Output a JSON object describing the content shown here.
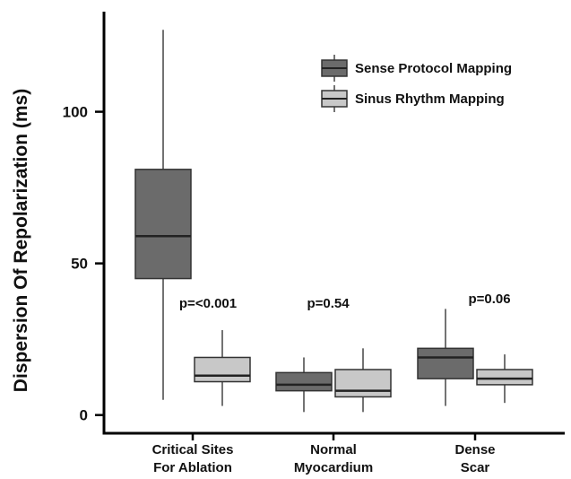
{
  "chart_data": {
    "type": "box",
    "ylabel": "Dispersion Of Repolarization (ms)",
    "xlabel": "",
    "ylim": [
      -6,
      133
    ],
    "yticks": [
      0,
      50,
      100
    ],
    "grid": false,
    "legend_position": "top-right",
    "categories": [
      {
        "line1": "Critical Sites",
        "line2": "For Ablation"
      },
      {
        "line1": "Normal",
        "line2": "Myocardium"
      },
      {
        "line1": "Dense",
        "line2": "Scar"
      }
    ],
    "p_values": [
      "p=<0.001",
      "p=0.54",
      "p=0.06"
    ],
    "series": [
      {
        "name": "Sense Protocol Mapping",
        "color": "#6b6b6b",
        "boxes": [
          {
            "min": 5,
            "q1": 45,
            "median": 59,
            "q3": 81,
            "max": 127
          },
          {
            "min": 1,
            "q1": 8,
            "median": 10,
            "q3": 14,
            "max": 19
          },
          {
            "min": 3,
            "q1": 12,
            "median": 19,
            "q3": 22,
            "max": 35
          }
        ]
      },
      {
        "name": "Sinus Rhythm Mapping",
        "color": "#c8c8c8",
        "boxes": [
          {
            "min": 3,
            "q1": 11,
            "median": 13,
            "q3": 19,
            "max": 28
          },
          {
            "min": 1,
            "q1": 6,
            "median": 8,
            "q3": 15,
            "max": 22
          },
          {
            "min": 4,
            "q1": 10,
            "median": 12,
            "q3": 15,
            "max": 20
          }
        ]
      }
    ]
  }
}
